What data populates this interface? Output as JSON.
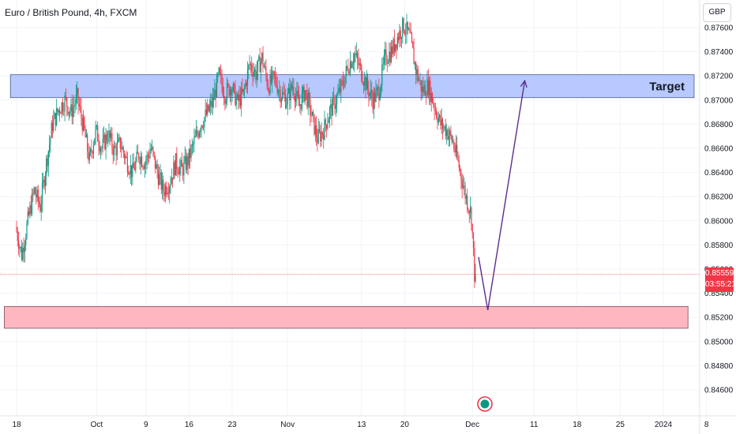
{
  "header": {
    "title": "Euro / British Pound, 4h, FXCM"
  },
  "price_axis": {
    "currency_button": "GBP"
  },
  "last_price": {
    "value": "0.85559",
    "countdown": "03:55:21"
  },
  "colors": {
    "up": "#089981",
    "down": "#f23645",
    "target_zone_fill": "#b3c6ff",
    "support_zone_fill": "#ffb3bc",
    "projection_line": "#5b2d8e"
  },
  "chart_data": {
    "type": "candlestick",
    "symbol": "EURGBP",
    "timeframe": "4h",
    "ylim": [
      0.845,
      0.8772
    ],
    "y_ticks": [
      0.846,
      0.848,
      0.85,
      0.852,
      0.854,
      0.856,
      0.858,
      0.86,
      0.862,
      0.864,
      0.866,
      0.868,
      0.87,
      0.872,
      0.874,
      0.876
    ],
    "y_tick_labels": [
      "0.84600",
      "0.84800",
      "0.85000",
      "0.85200",
      "0.85400",
      "0.85600",
      "0.85800",
      "0.86000",
      "0.86200",
      "0.86400",
      "0.86600",
      "0.86800",
      "0.87000",
      "0.87200",
      "0.87400",
      "0.87600"
    ],
    "x_labels": [
      {
        "label": "18",
        "day": 0
      },
      {
        "label": "Oct",
        "day": 13
      },
      {
        "label": "9",
        "day": 21
      },
      {
        "label": "16",
        "day": 28
      },
      {
        "label": "23",
        "day": 35
      },
      {
        "label": "Nov",
        "day": 44
      },
      {
        "label": "13",
        "day": 56
      },
      {
        "label": "20",
        "day": 63
      },
      {
        "label": "Dec",
        "day": 74
      },
      {
        "label": "11",
        "day": 84
      },
      {
        "label": "18",
        "day": 91
      },
      {
        "label": "25",
        "day": 98
      },
      {
        "label": "2024",
        "day": 105
      },
      {
        "label": "8",
        "day": 112
      }
    ],
    "price_path": [
      [
        0,
        0.8595
      ],
      [
        1,
        0.8572
      ],
      [
        2,
        0.86
      ],
      [
        3,
        0.8625
      ],
      [
        4,
        0.8612
      ],
      [
        5,
        0.8648
      ],
      [
        6,
        0.868
      ],
      [
        7,
        0.8692
      ],
      [
        8,
        0.87
      ],
      [
        9,
        0.869
      ],
      [
        10,
        0.8702
      ],
      [
        11,
        0.8678
      ],
      [
        12,
        0.865
      ],
      [
        13,
        0.8675
      ],
      [
        14,
        0.866
      ],
      [
        15,
        0.8672
      ],
      [
        16,
        0.8658
      ],
      [
        17,
        0.8664
      ],
      [
        18,
        0.865
      ],
      [
        19,
        0.864
      ],
      [
        20,
        0.8655
      ],
      [
        21,
        0.8648
      ],
      [
        22,
        0.866
      ],
      [
        23,
        0.864
      ],
      [
        24,
        0.8625
      ],
      [
        25,
        0.8632
      ],
      [
        26,
        0.8648
      ],
      [
        27,
        0.8642
      ],
      [
        28,
        0.865
      ],
      [
        29,
        0.8665
      ],
      [
        30,
        0.868
      ],
      [
        31,
        0.8688
      ],
      [
        32,
        0.8698
      ],
      [
        33,
        0.872
      ],
      [
        34,
        0.8705
      ],
      [
        35,
        0.8712
      ],
      [
        36,
        0.8698
      ],
      [
        37,
        0.8705
      ],
      [
        38,
        0.873
      ],
      [
        39,
        0.8722
      ],
      [
        40,
        0.8735
      ],
      [
        41,
        0.8712
      ],
      [
        42,
        0.8718
      ],
      [
        43,
        0.8706
      ],
      [
        44,
        0.87
      ],
      [
        45,
        0.8712
      ],
      [
        46,
        0.8695
      ],
      [
        47,
        0.8708
      ],
      [
        48,
        0.8688
      ],
      [
        49,
        0.8668
      ],
      [
        50,
        0.8675
      ],
      [
        51,
        0.869
      ],
      [
        52,
        0.87
      ],
      [
        53,
        0.8712
      ],
      [
        54,
        0.8728
      ],
      [
        55,
        0.8738
      ],
      [
        56,
        0.8725
      ],
      [
        57,
        0.8712
      ],
      [
        58,
        0.87
      ],
      [
        59,
        0.8708
      ],
      [
        60,
        0.8735
      ],
      [
        61,
        0.874
      ],
      [
        62,
        0.8752
      ],
      [
        63,
        0.8762
      ],
      [
        64,
        0.8752
      ],
      [
        65,
        0.8725
      ],
      [
        66,
        0.8708
      ],
      [
        67,
        0.8712
      ],
      [
        68,
        0.8695
      ],
      [
        69,
        0.868
      ],
      [
        70,
        0.8675
      ],
      [
        71,
        0.8665
      ],
      [
        72,
        0.8645
      ],
      [
        73,
        0.8622
      ],
      [
        74,
        0.8605
      ],
      [
        74.5,
        0.8556
      ]
    ],
    "zones": [
      {
        "label": "Target",
        "from_day": -1,
        "to_day": 110,
        "low": 0.8702,
        "high": 0.8721
      },
      {
        "label": "",
        "from_day": -2,
        "to_day": 109,
        "low": 0.8511,
        "high": 0.8529
      }
    ],
    "projection": [
      [
        75,
        0.857
      ],
      [
        76.5,
        0.8526
      ],
      [
        82.5,
        0.8716
      ]
    ],
    "current_price_line": 0.85559
  }
}
